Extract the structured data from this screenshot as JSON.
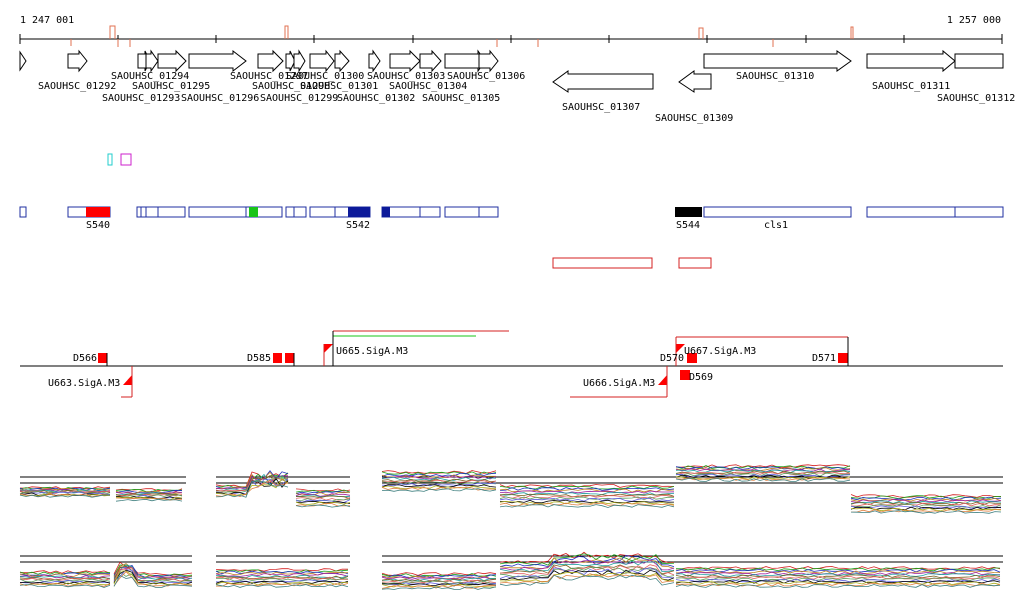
{
  "colors": {
    "axis": "#000000",
    "gene_outline": "#000000",
    "operon_outline": "#1f2fa0",
    "transcript": "#d42020",
    "marker_red": "#ff0000",
    "marker_green": "#19c419",
    "marker_navy": "#0d1a9a",
    "marker_black": "#000000",
    "cyan": "#22cccc",
    "magenta": "#cc22cc",
    "upper_line": "#d42020",
    "green_line": "#19c419"
  },
  "ruler": {
    "start_label": "1 247 001",
    "end_label": "1 257 000"
  },
  "genes": [
    "SAOUHSC_01292",
    "SAOUHSC_01293",
    "SAOUHSC_01294",
    "SAOUHSC_01295",
    "SAOUHSC_01296",
    "SAOUHSC_01297",
    "SAOUHSC_01298",
    "SAOUHSC_01299",
    "SAOUHSC_01300",
    "SAOUHSC_01301",
    "SAOUHSC_01302",
    "SAOUHSC_01303",
    "SAOUHSC_01304",
    "SAOUHSC_01305",
    "SAOUHSC_01306",
    "SAOUHSC_01307",
    "SAOUHSC_01309",
    "SAOUHSC_01310",
    "SAOUHSC_01311",
    "SAOUHSC_01312"
  ],
  "segments": {
    "s540": "S540",
    "s542": "S542",
    "s544": "S544",
    "cls1": "cls1"
  },
  "breakpoints": {
    "d566": "D566",
    "d585": "D585",
    "d570": "D570",
    "d571": "D571",
    "d569": "D569",
    "u663": "U663.SigA.M3",
    "u666": "U666.SigA.M3",
    "u667": "U667.SigA.M3",
    "u665": "U665.SigA.M3"
  }
}
